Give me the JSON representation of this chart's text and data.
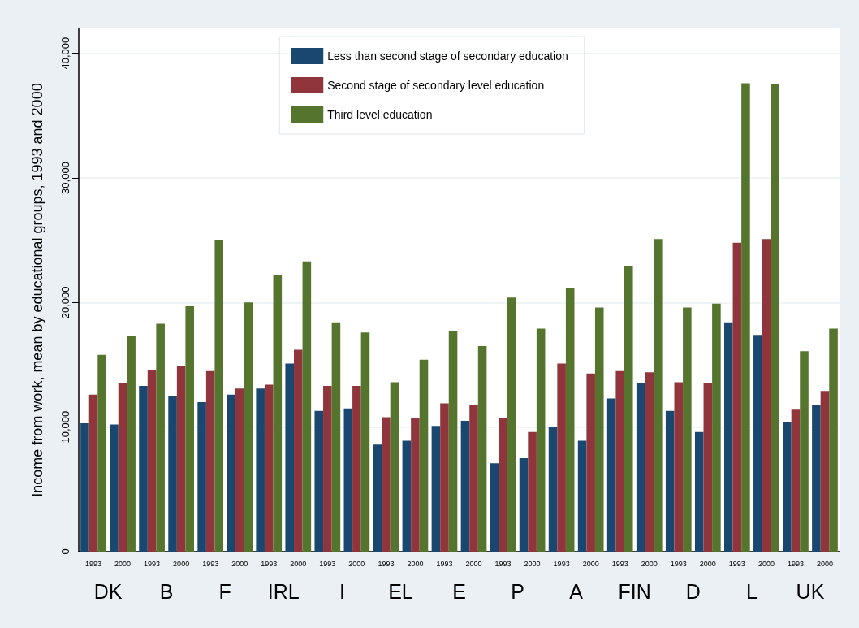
{
  "chart_data": {
    "type": "bar",
    "ylabel": "Income from work, mean by educational groups, 1993 and 2000",
    "categories": [
      "1993",
      "2000",
      "1993",
      "2000",
      "1993",
      "2000",
      "1993",
      "2000",
      "1993",
      "2000",
      "1993",
      "2000",
      "1993",
      "2000",
      "1993",
      "2000",
      "1993",
      "2000",
      "1993",
      "2000",
      "1993",
      "2000",
      "1993",
      "2000",
      "1993",
      "2000"
    ],
    "annotations": [
      "DK",
      "B",
      "F",
      "IRL",
      "I",
      "EL",
      "E",
      "P",
      "A",
      "FIN",
      "D",
      "L",
      "UK"
    ],
    "series": [
      {
        "name": "Less than second stage of secondary education",
        "color": "#1a476f",
        "values": [
          10300,
          10200,
          13300,
          12500,
          12000,
          12600,
          13100,
          15100,
          11300,
          11500,
          8600,
          8900,
          10100,
          10500,
          7100,
          7500,
          10000,
          8900,
          12300,
          13500,
          11300,
          9600,
          18400,
          17400,
          10400,
          11800
        ]
      },
      {
        "name": "Second stage of secondary level education",
        "color": "#90353b",
        "values": [
          12600,
          13500,
          14600,
          14900,
          14500,
          13100,
          13400,
          16200,
          13300,
          13300,
          10800,
          10700,
          11900,
          11800,
          10700,
          9600,
          15100,
          14300,
          14500,
          14400,
          13600,
          13500,
          24800,
          25100,
          11400,
          12900
        ]
      },
      {
        "name": "Third level education",
        "color": "#55752f",
        "values": [
          15800,
          17300,
          18300,
          19700,
          25000,
          20000,
          22200,
          23300,
          18400,
          17600,
          13600,
          15400,
          17700,
          16500,
          20400,
          17900,
          21200,
          19600,
          22900,
          25100,
          19600,
          19900,
          37600,
          37500,
          16100,
          17900
        ]
      }
    ],
    "ylim": [
      0,
      42000
    ],
    "yticks": [
      0,
      {
        "value": 10000,
        "label": "10,000"
      },
      {
        "value": 20000,
        "label": "20,000"
      },
      {
        "value": 30000,
        "label": "30,000"
      },
      {
        "value": 40000,
        "label": "40,000"
      }
    ],
    "grid": "y",
    "legend": "top"
  }
}
